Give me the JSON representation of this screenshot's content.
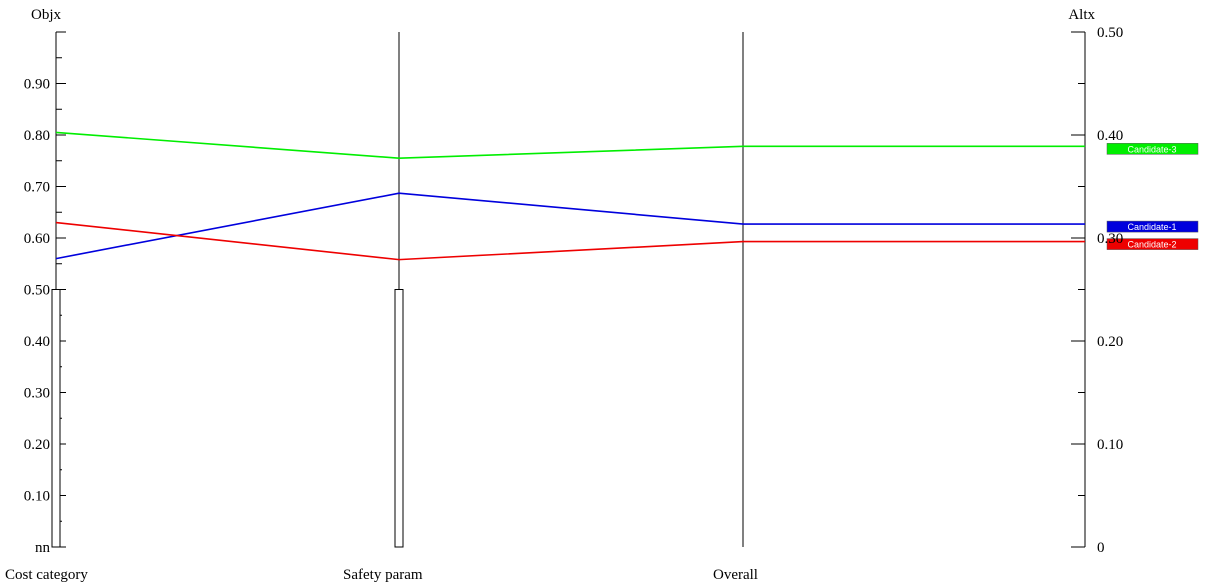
{
  "chart_data": {
    "type": "line",
    "left_axis": {
      "title": "Objx",
      "ticks": [
        "nn",
        "0.10",
        "0.20",
        "0.30",
        "0.40",
        "0.50",
        "0.60",
        "0.70",
        "0.80",
        "0.90"
      ],
      "ylim": [
        0,
        1.0
      ]
    },
    "right_axis": {
      "title": "Altx",
      "ticks": [
        "0",
        "0.10",
        "0.20",
        "0.30",
        "0.40",
        "0.50"
      ],
      "ylim": [
        0,
        0.5
      ]
    },
    "categories": [
      "Cost category",
      "Safety param",
      "Overall"
    ],
    "weight_bars": [
      0.5,
      0.5
    ],
    "series": [
      {
        "name": "Candidate-3",
        "color": "#00ee00",
        "values": [
          0.805,
          0.755,
          0.778
        ]
      },
      {
        "name": "Candidate-1",
        "color": "#0000dd",
        "values": [
          0.56,
          0.687,
          0.627
        ]
      },
      {
        "name": "Candidate-2",
        "color": "#ee0000",
        "values": [
          0.63,
          0.558,
          0.593
        ]
      }
    ],
    "grid": false,
    "legend_position": "right"
  }
}
